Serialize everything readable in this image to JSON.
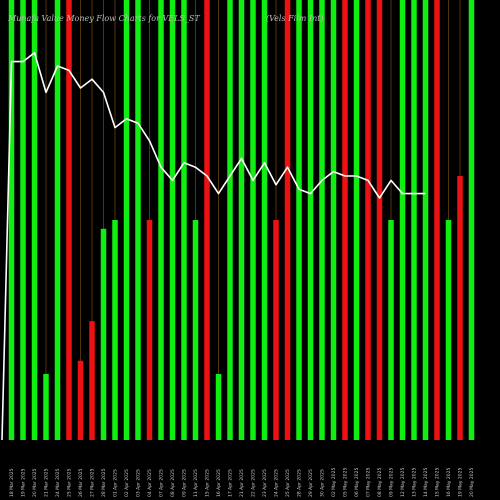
{
  "header": {
    "title_left": "Munafa Value Money Flow Charts for VELS_ST",
    "title_right": "(Vels Film Int)"
  },
  "chart_data": {
    "type": "bar",
    "categories": [
      "18 Mar 2025",
      "19 Mar 2025",
      "20 Mar 2025",
      "21 Mar 2025",
      "24 Mar 2025",
      "25 Mar 2025",
      "26 Mar 2025",
      "27 Mar 2025",
      "28 Mar 2025",
      "01 Apr 2025",
      "02 Apr 2025",
      "03 Apr 2025",
      "04 Apr 2025",
      "07 Apr 2025",
      "08 Apr 2025",
      "09 Apr 2025",
      "11 Apr 2025",
      "15 Apr 2025",
      "16 Apr 2025",
      "17 Apr 2025",
      "21 Apr 2025",
      "22 Apr 2025",
      "23 Apr 2025",
      "24 Apr 2025",
      "25 Apr 2025",
      "28 Apr 2025",
      "29 Apr 2025",
      "30 Apr 2025",
      "02 May 2025",
      "05 May 2025",
      "06 May 2025",
      "07 May 2025",
      "08 May 2025",
      "09 May 2025",
      "12 May 2025",
      "13 May 2025",
      "14 May 2025",
      "15 May 2025",
      "16 May 2025",
      "19 May 2025",
      "20 May 2025"
    ],
    "colors": [
      "green",
      "green",
      "green",
      "green",
      "green",
      "red",
      "red",
      "red",
      "green",
      "green",
      "green",
      "green",
      "red",
      "green",
      "green",
      "green",
      "green",
      "red",
      "green",
      "green",
      "green",
      "green",
      "green",
      "red",
      "red",
      "green",
      "green",
      "green",
      "green",
      "red",
      "green",
      "red",
      "red",
      "green",
      "green",
      "green",
      "green",
      "red",
      "green",
      "red",
      "green"
    ],
    "values": [
      100,
      100,
      100,
      15,
      100,
      100,
      18,
      27,
      48,
      50,
      100,
      100,
      50,
      100,
      100,
      100,
      50,
      100,
      15,
      100,
      100,
      100,
      100,
      50,
      100,
      100,
      100,
      100,
      100,
      100,
      100,
      100,
      100,
      50,
      100,
      100,
      100,
      100,
      50,
      60,
      100
    ],
    "line": [
      86,
      86,
      88,
      79,
      85,
      84,
      80,
      82,
      79,
      71,
      73,
      72,
      68,
      62,
      59,
      63,
      62,
      60,
      56,
      60,
      64,
      59,
      63,
      58,
      62,
      57,
      56,
      59,
      61,
      60,
      60,
      59,
      55,
      59,
      56,
      56,
      56
    ],
    "ylim": [
      0,
      100
    ],
    "grid": false,
    "legend": "none"
  },
  "colors": {
    "background": "#000000",
    "green": "#11ee11",
    "red": "#ee1111",
    "line": "#ffffff",
    "gridline": "#8a5a10"
  }
}
